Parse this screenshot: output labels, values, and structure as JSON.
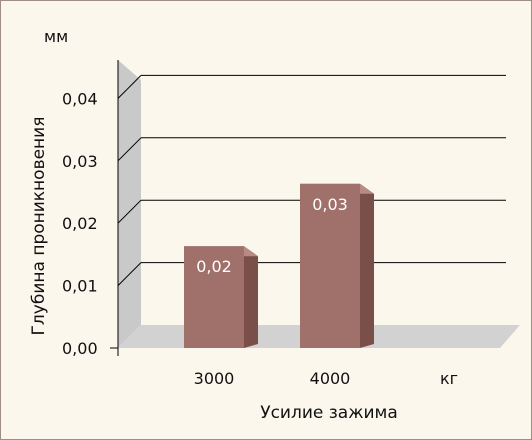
{
  "chart_data": {
    "type": "bar",
    "categories": [
      "3000",
      "4000"
    ],
    "values": [
      0.02,
      0.03
    ],
    "data_labels": [
      "0,02",
      "0,03"
    ],
    "y_ticks": [
      "0,00",
      "0,01",
      "0,02",
      "0,03",
      "0,04"
    ],
    "ylim": [
      0,
      0.045
    ],
    "xlabel": "Усилие зажима",
    "ylabel": "Глубина проникновения",
    "y_unit": "мм",
    "x_unit": "кг",
    "grid": true,
    "legend": "none",
    "colors": {
      "bar_front": "#a0706a",
      "bar_side": "#7a4f4a",
      "bar_top": "#b98a83",
      "wall": "#c9c9c9",
      "floor": "#d2d2d2",
      "frame_bg": "#fcf7ed",
      "frame_border": "#9e8f86"
    }
  }
}
